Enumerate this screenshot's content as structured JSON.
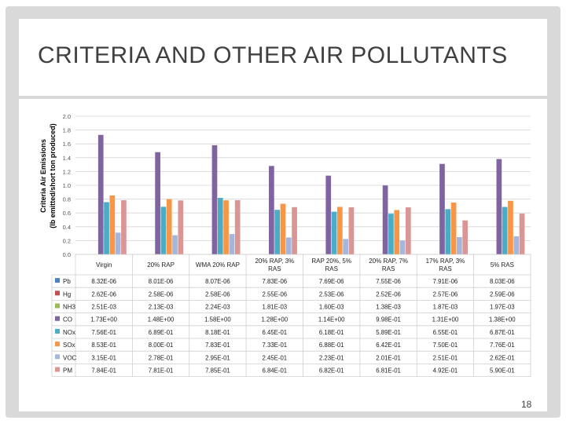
{
  "slide": {
    "title": "CRITERIA AND OTHER AIR POLLUTANTS",
    "page_number": "18"
  },
  "chart_data": {
    "type": "bar",
    "ylabel_line1": "Criteria Air Emissions",
    "ylabel_line2": "(lb emitted/short ton produced)",
    "ylim": [
      0,
      2.0
    ],
    "yticks": [
      "0.0",
      "0.2",
      "0.4",
      "0.6",
      "0.8",
      "1.0",
      "1.2",
      "1.4",
      "1.6",
      "1.8",
      "2.0"
    ],
    "grid": true,
    "categories": [
      [
        "Virgin"
      ],
      [
        "20% RAP"
      ],
      [
        "WMA 20% RAP"
      ],
      [
        "20% RAP, 3%",
        "RAS"
      ],
      [
        "RAP 20%, 5%",
        "RAS"
      ],
      [
        "20% RAP, 7%",
        "RAS"
      ],
      [
        "17% RAP, 3%",
        "RAS"
      ],
      [
        "5% RAS"
      ]
    ],
    "series": [
      {
        "name": "Pb",
        "color": "#4f81bd",
        "values": [
          8.32e-06,
          8.01e-06,
          8.07e-06,
          7.83e-06,
          7.69e-06,
          7.55e-06,
          7.91e-06,
          8.03e-06
        ],
        "table": [
          "8.32E-06",
          "8.01E-06",
          "8.07E-06",
          "7.83E-06",
          "7.69E-06",
          "7.55E-06",
          "7.91E-06",
          "8.03E-06"
        ]
      },
      {
        "name": "Hg",
        "color": "#c0504d",
        "values": [
          2.62e-06,
          2.58e-06,
          2.58e-06,
          2.55e-06,
          2.53e-06,
          2.52e-06,
          2.57e-06,
          2.59e-06
        ],
        "table": [
          "2.62E-06",
          "2.58E-06",
          "2.58E-06",
          "2.55E-06",
          "2.53E-06",
          "2.52E-06",
          "2.57E-06",
          "2.59E-06"
        ]
      },
      {
        "name": "NH3",
        "color": "#9bbb59",
        "values": [
          0.00251,
          0.00213,
          0.00224,
          0.00181,
          0.0016,
          0.00138,
          0.00187,
          0.00197
        ],
        "table": [
          "2.51E-03",
          "2.13E-03",
          "2.24E-03",
          "1.81E-03",
          "1.60E-03",
          "1.38E-03",
          "1.87E-03",
          "1.97E-03"
        ]
      },
      {
        "name": "CO",
        "color": "#8064a2",
        "values": [
          1.73,
          1.48,
          1.58,
          1.28,
          1.14,
          0.998,
          1.31,
          1.38
        ],
        "table": [
          "1.73E+00",
          "1.48E+00",
          "1.58E+00",
          "1.28E+00",
          "1.14E+00",
          "9.98E-01",
          "1.31E+00",
          "1.38E+00"
        ]
      },
      {
        "name": "NOx",
        "color": "#4bacc6",
        "values": [
          0.756,
          0.689,
          0.818,
          0.645,
          0.618,
          0.589,
          0.655,
          0.687
        ],
        "table": [
          "7.56E-01",
          "6.89E-01",
          "8.18E-01",
          "6.45E-01",
          "6.18E-01",
          "5.89E-01",
          "6.55E-01",
          "6.87E-01"
        ]
      },
      {
        "name": "SOx",
        "color": "#f79646",
        "values": [
          0.853,
          0.8,
          0.783,
          0.733,
          0.688,
          0.642,
          0.75,
          0.776
        ],
        "table": [
          "8.53E-01",
          "8.00E-01",
          "7.83E-01",
          "7.33E-01",
          "6.88E-01",
          "6.42E-01",
          "7.50E-01",
          "7.76E-01"
        ]
      },
      {
        "name": "VOC",
        "color": "#a5b6dc",
        "values": [
          0.315,
          0.278,
          0.295,
          0.245,
          0.223,
          0.201,
          0.251,
          0.262
        ],
        "table": [
          "3.15E-01",
          "2.78E-01",
          "2.95E-01",
          "2.45E-01",
          "2.23E-01",
          "2.01E-01",
          "2.51E-01",
          "2.62E-01"
        ]
      },
      {
        "name": "PM",
        "color": "#d99694",
        "values": [
          0.784,
          0.781,
          0.785,
          0.684,
          0.682,
          0.681,
          0.492,
          0.59
        ],
        "table": [
          "7.84E-01",
          "7.81E-01",
          "7.85E-01",
          "6.84E-01",
          "6.82E-01",
          "6.81E-01",
          "4.92E-01",
          "5.90E-01"
        ]
      }
    ]
  }
}
